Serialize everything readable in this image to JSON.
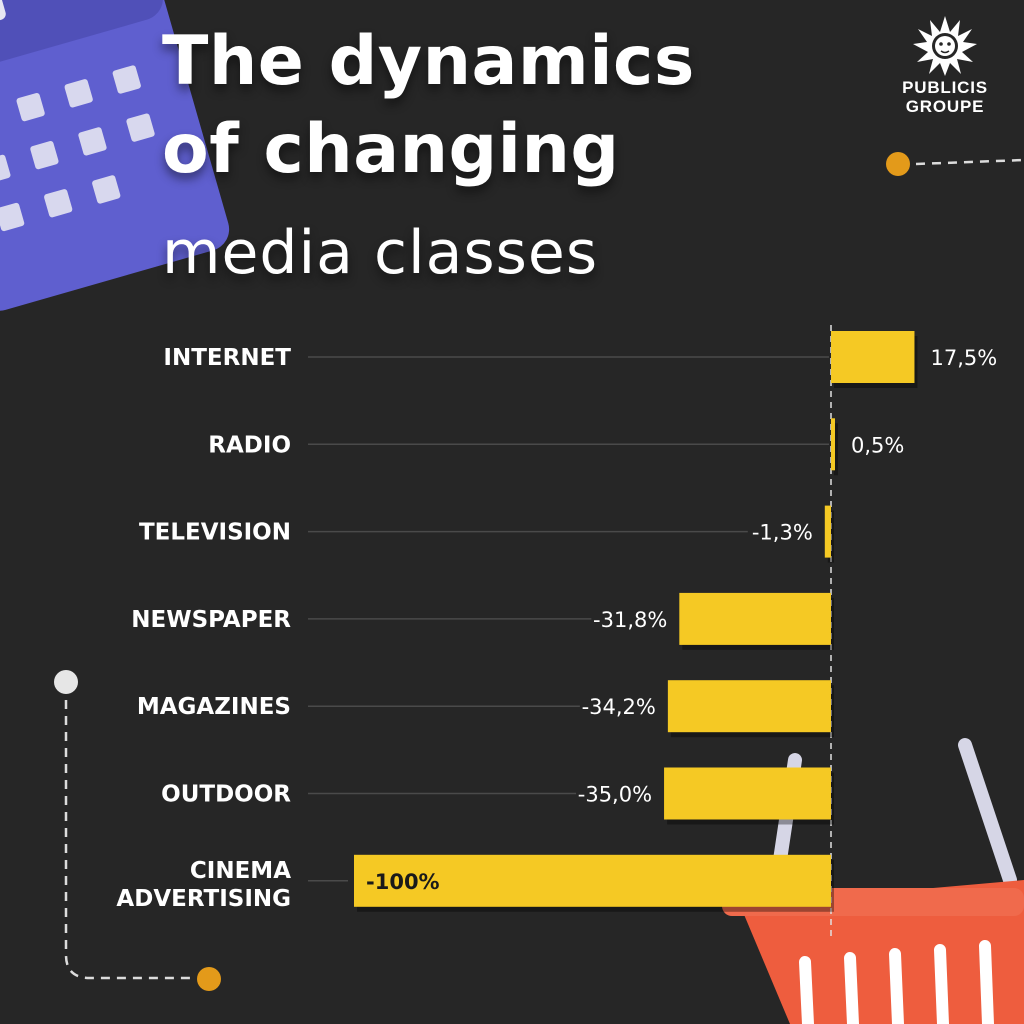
{
  "header": {
    "title_line1": "The dynamics",
    "title_line2": "of changing",
    "title_line3": "media classes"
  },
  "brand": {
    "line1": "PUBLICIS",
    "line2": "GROUPE"
  },
  "colors": {
    "background": "#262626",
    "bar": "#f5c924",
    "calendar": "#5f5fcf",
    "basket": "#ee5d3e",
    "accent_dot": "#e39a1a"
  },
  "icons": [
    "calendar-icon",
    "shopping-basket-icon",
    "lion-head-logo-icon"
  ],
  "chart_data": {
    "type": "bar",
    "orientation": "horizontal",
    "categories": [
      "INTERNET",
      "RADIO",
      "TELEVISION",
      "NEWSPAPER",
      "MAGAZINES",
      "OUTDOOR",
      "CINEMA ADVERTISING"
    ],
    "values": [
      17.5,
      0.5,
      -1.3,
      -31.8,
      -34.2,
      -35.0,
      -100
    ],
    "labels": [
      "17,5%",
      "0,5%",
      "-1,3%",
      "-31,8%",
      "-34,2%",
      "-35,0%",
      "-100%"
    ],
    "unit": "%",
    "xlim": [
      -100,
      17.5
    ],
    "grid": false,
    "legend": "none"
  }
}
